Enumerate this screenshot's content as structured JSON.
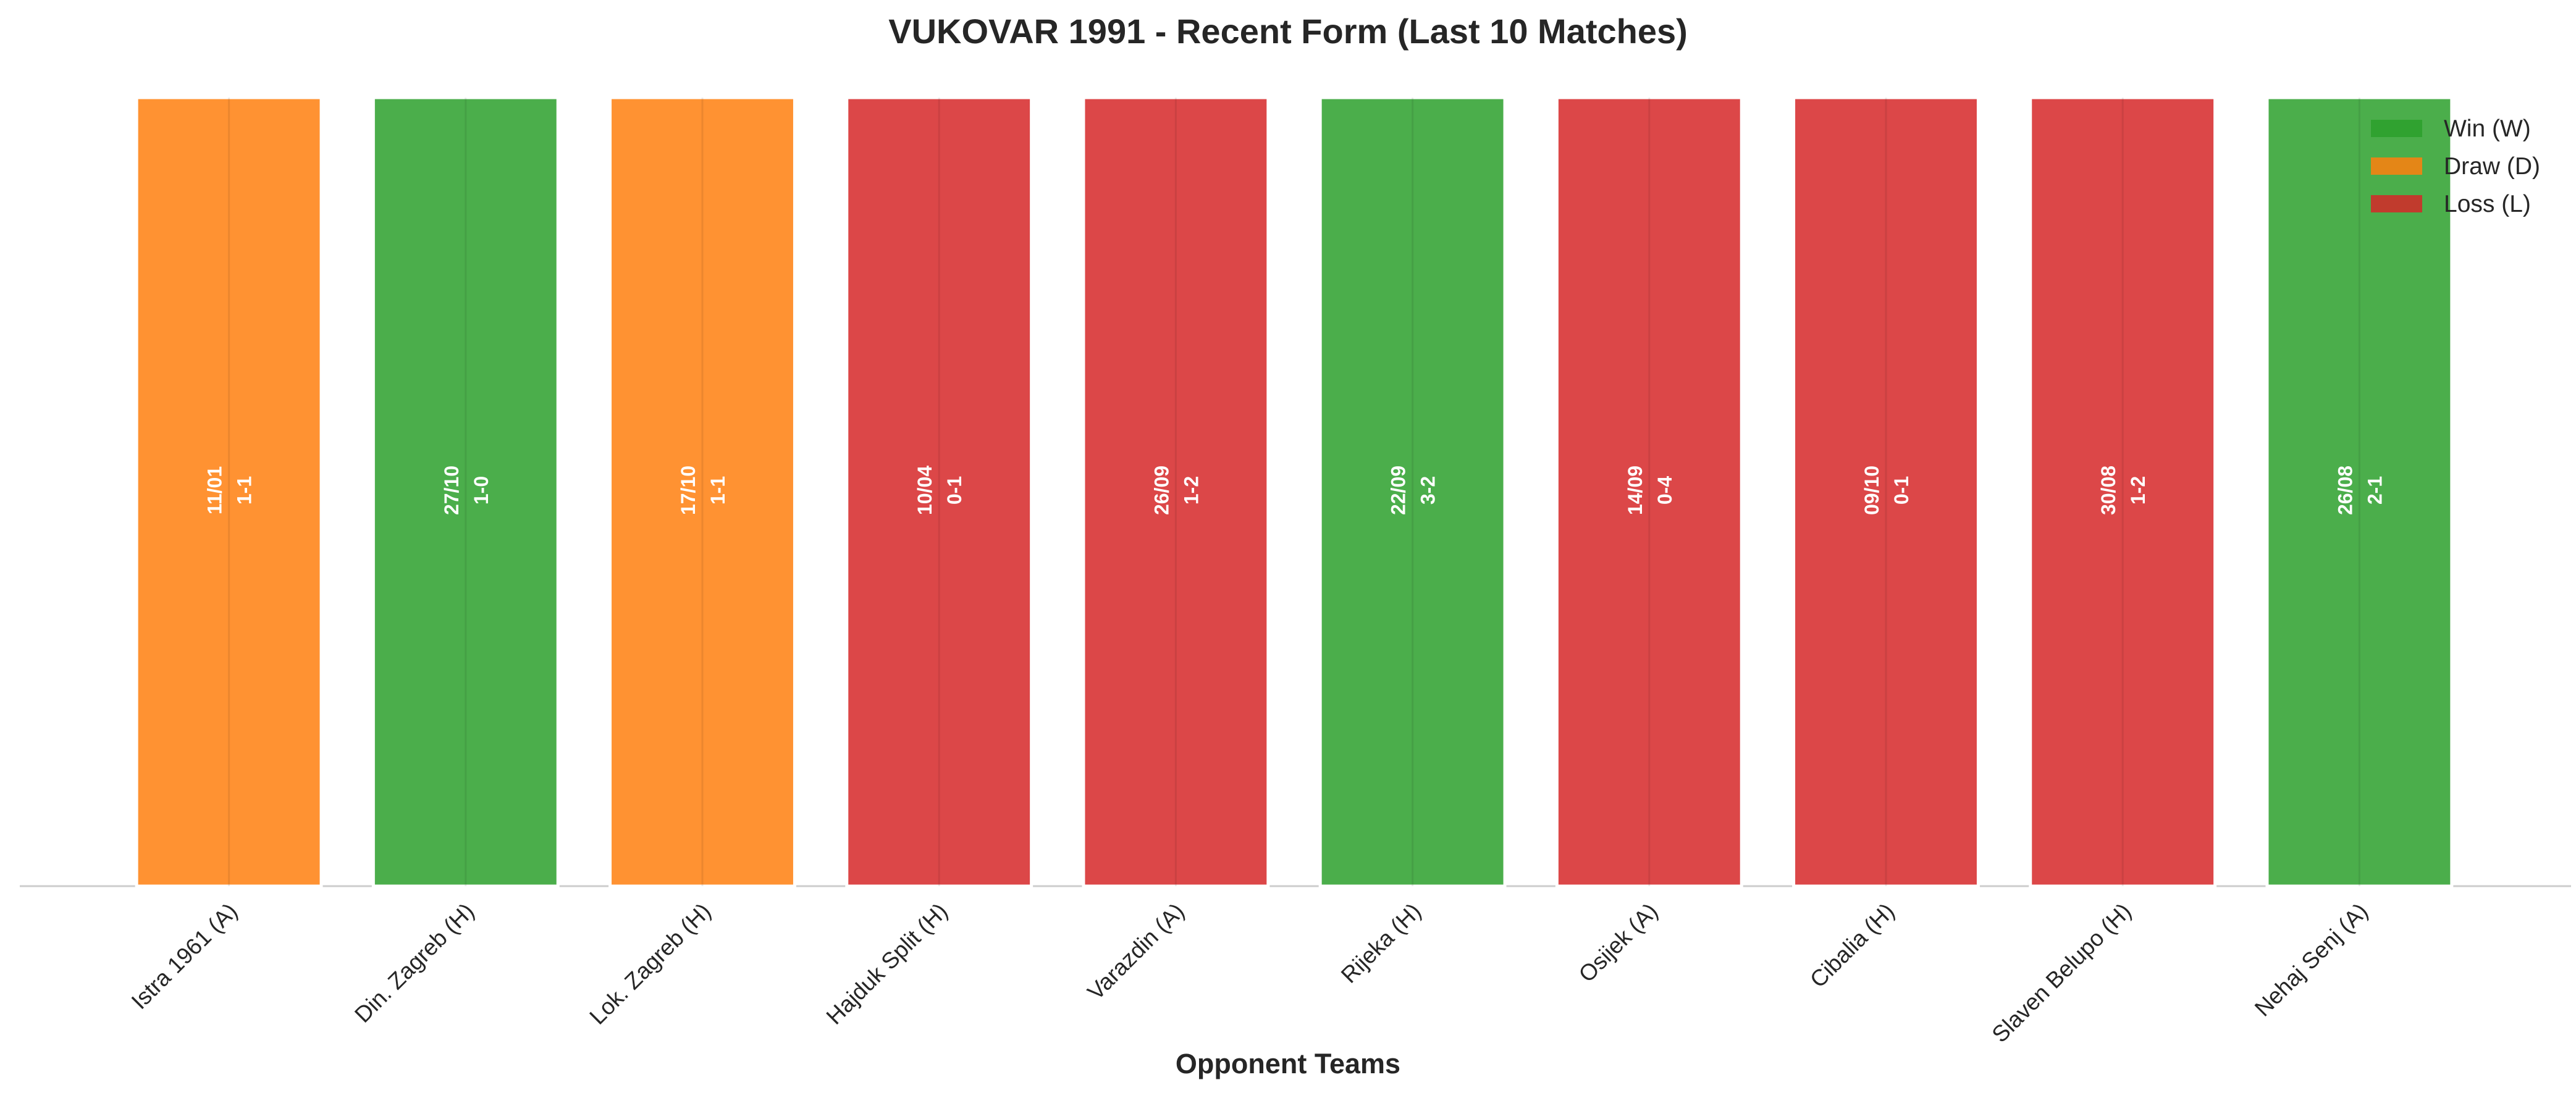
{
  "chart_data": {
    "type": "bar",
    "title": "VUKOVAR 1991 - Recent Form (Last 10 Matches)",
    "x_label": "Opponent Teams",
    "categories": [
      "Istra 1961 (A)",
      "Din. Zagreb (H)",
      "Lok. Zagreb (H)",
      "Hajduk Split (H)",
      "Varazdin (A)",
      "Rijeka (H)",
      "Osijek (A)",
      "Cibalia (H)",
      "Slaven Belupo (H)",
      "Nehaj Senj (A)"
    ],
    "dates": [
      "11/01",
      "27/10",
      "17/10",
      "10/04",
      "26/09",
      "22/09",
      "14/09",
      "09/10",
      "30/08",
      "26/08"
    ],
    "scores": [
      "1-1",
      "1-0",
      "1-1",
      "0-1",
      "1-2",
      "3-2",
      "0-4",
      "0-1",
      "1-2",
      "2-1"
    ],
    "series": [
      {
        "name": "Win (W)",
        "color": "#2ca02c",
        "values": [
          null,
          1,
          null,
          null,
          null,
          1,
          null,
          null,
          null,
          1
        ]
      },
      {
        "name": "Draw (D)",
        "color": "#ff7f0e",
        "values": [
          1,
          null,
          1,
          null,
          null,
          null,
          null,
          null,
          null,
          null
        ]
      },
      {
        "name": "Loss (L)",
        "color": "#d62728",
        "values": [
          null,
          null,
          null,
          1,
          1,
          null,
          1,
          1,
          1,
          null
        ]
      }
    ],
    "grid": true,
    "legend": "upper right"
  }
}
